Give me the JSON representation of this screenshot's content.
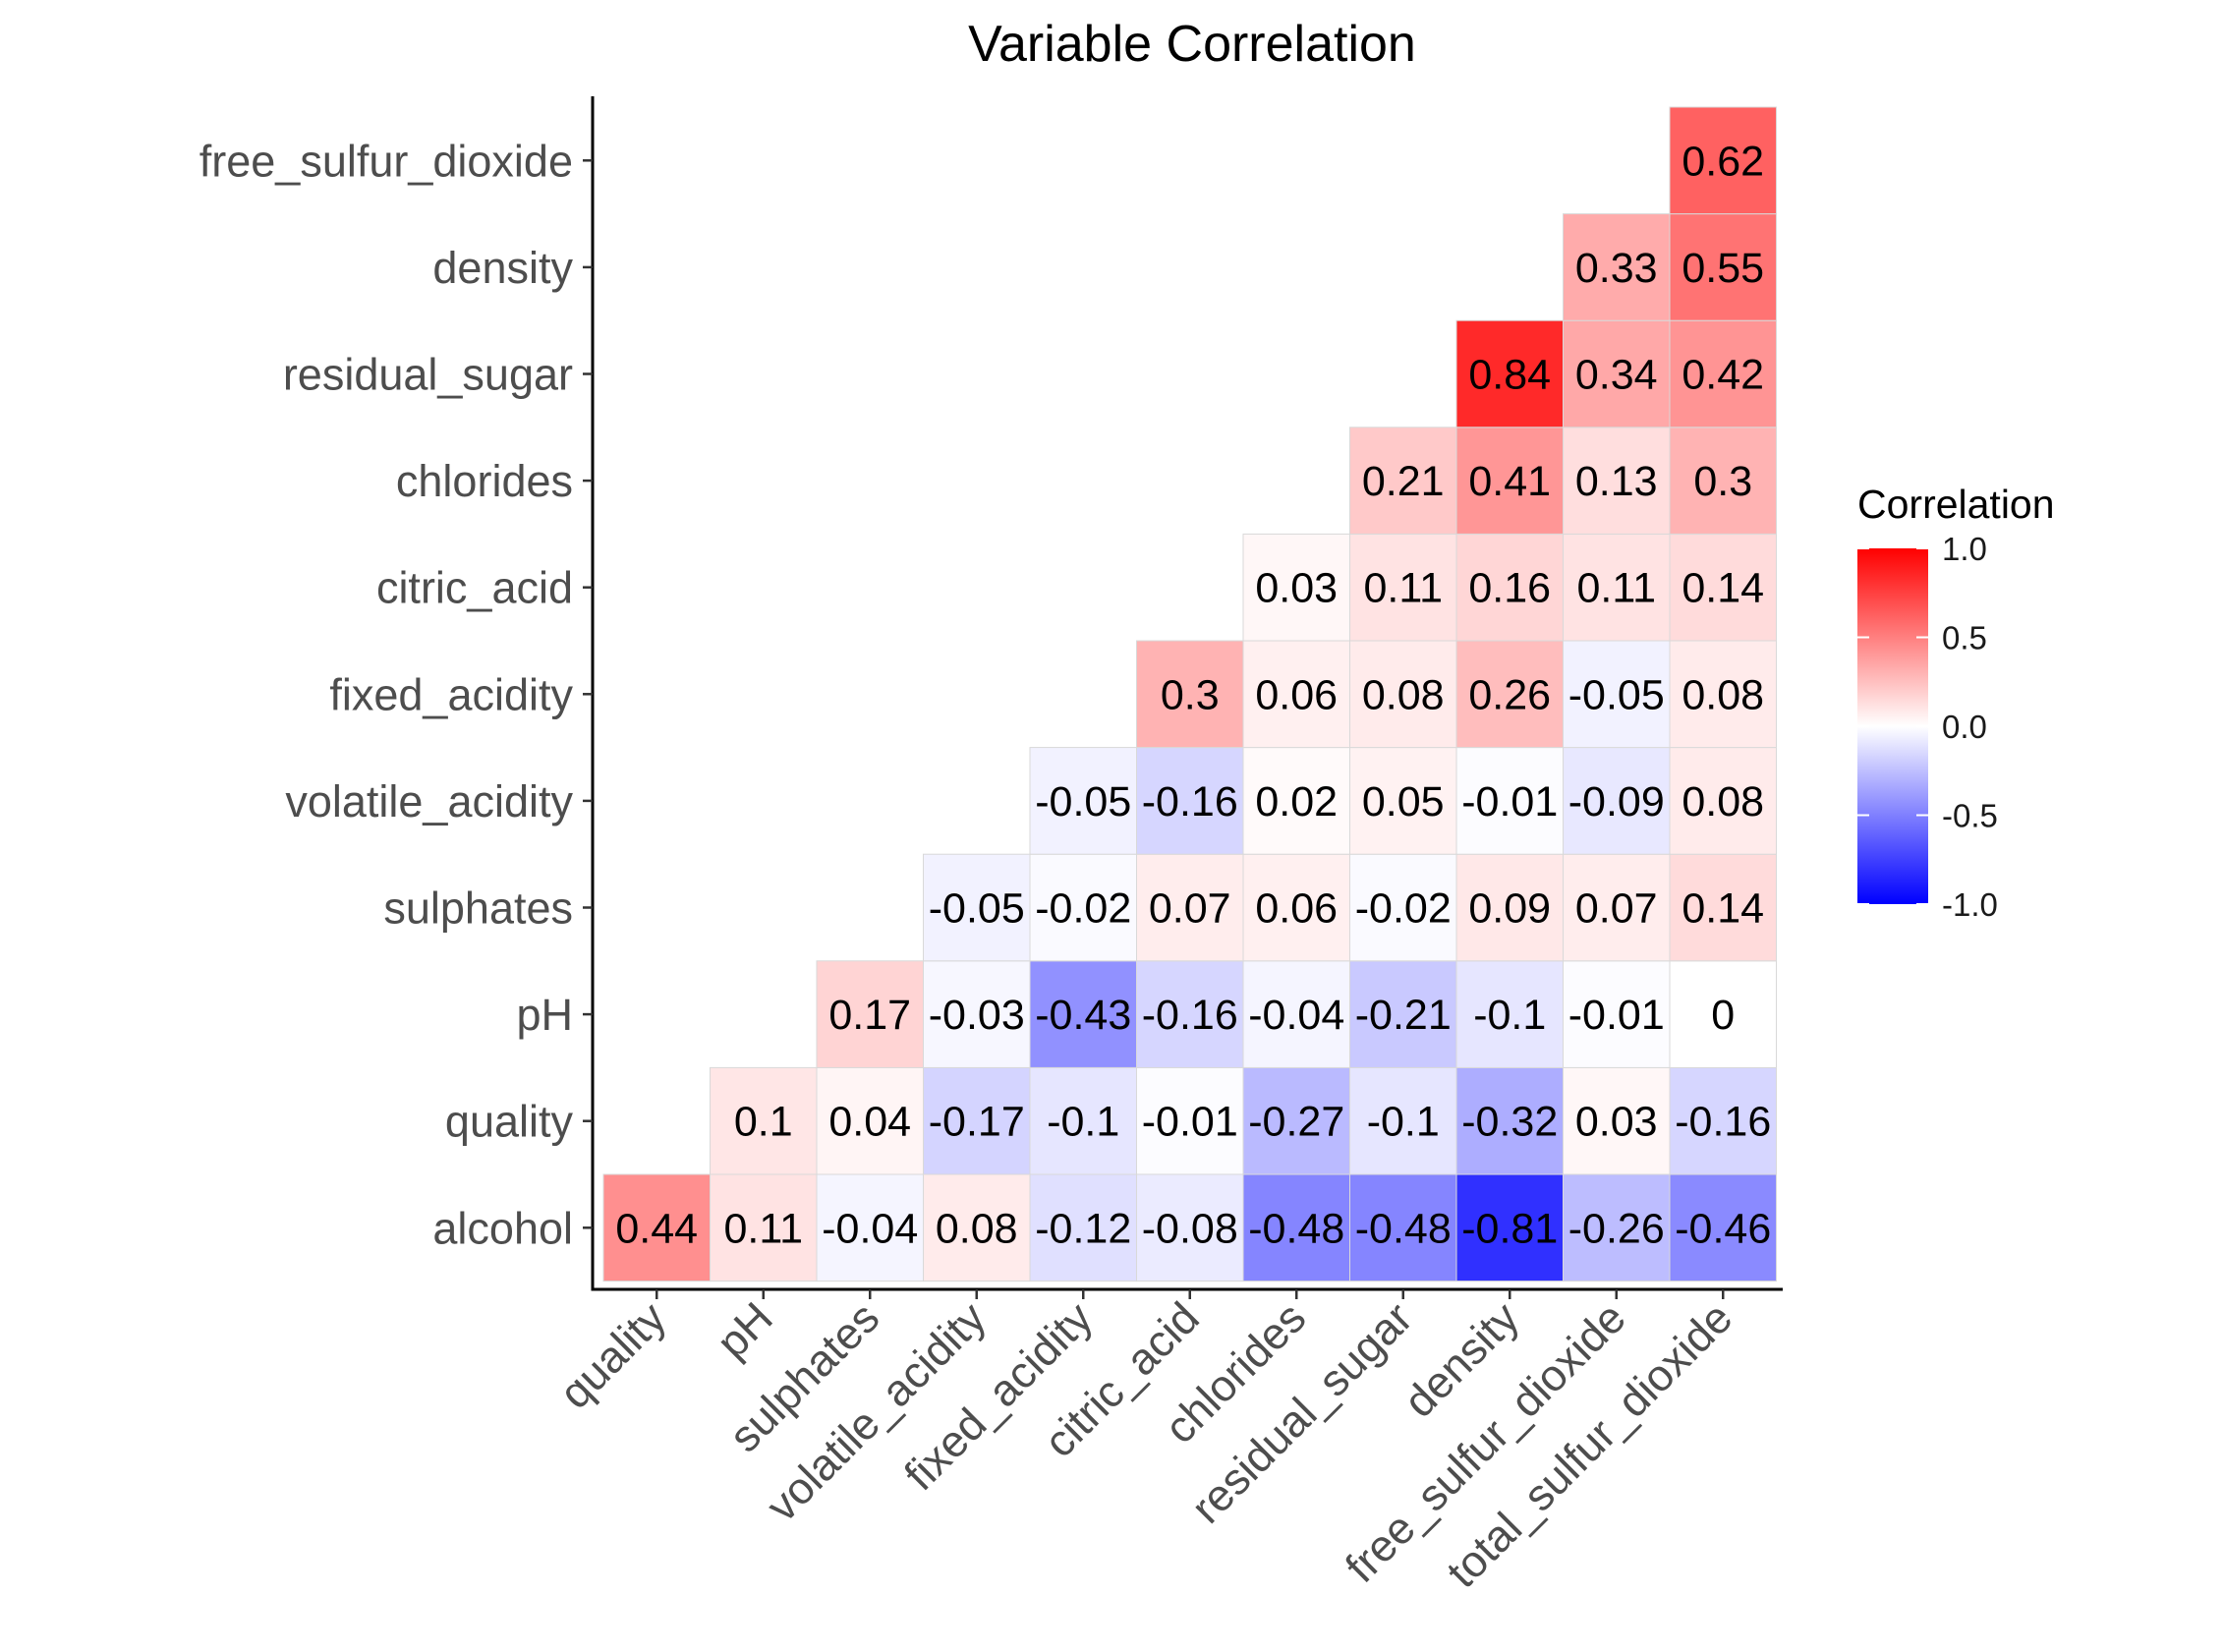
{
  "chart_data": {
    "type": "heatmap",
    "title": "Variable Correlation",
    "xlabel": "",
    "ylabel": "",
    "x_categories": [
      "quality",
      "pH",
      "sulphates",
      "volatile_acidity",
      "fixed_acidity",
      "citric_acid",
      "chlorides",
      "residual_sugar",
      "density",
      "free_sulfur_dioxide",
      "total_sulfur_dioxide"
    ],
    "y_categories": [
      "alcohol",
      "quality",
      "pH",
      "sulphates",
      "volatile_acidity",
      "fixed_acidity",
      "citric_acid",
      "chlorides",
      "residual_sugar",
      "density",
      "free_sulfur_dioxide"
    ],
    "values": [
      [
        0.44,
        0.11,
        -0.04,
        0.08,
        -0.12,
        -0.08,
        -0.48,
        -0.48,
        -0.81,
        -0.26,
        -0.46
      ],
      [
        null,
        0.1,
        0.04,
        -0.17,
        -0.1,
        -0.01,
        -0.27,
        -0.1,
        -0.32,
        0.03,
        -0.16
      ],
      [
        null,
        null,
        0.17,
        -0.03,
        -0.43,
        -0.16,
        -0.04,
        -0.21,
        -0.1,
        -0.01,
        0
      ],
      [
        null,
        null,
        null,
        -0.05,
        -0.02,
        0.07,
        0.06,
        -0.02,
        0.09,
        0.07,
        0.14
      ],
      [
        null,
        null,
        null,
        null,
        -0.05,
        -0.16,
        0.02,
        0.05,
        -0.01,
        -0.09,
        0.08
      ],
      [
        null,
        null,
        null,
        null,
        null,
        0.3,
        0.06,
        0.08,
        0.26,
        -0.05,
        0.08
      ],
      [
        null,
        null,
        null,
        null,
        null,
        null,
        0.03,
        0.11,
        0.16,
        0.11,
        0.14
      ],
      [
        null,
        null,
        null,
        null,
        null,
        null,
        null,
        0.21,
        0.41,
        0.13,
        0.3
      ],
      [
        null,
        null,
        null,
        null,
        null,
        null,
        null,
        null,
        0.84,
        0.34,
        0.42
      ],
      [
        null,
        null,
        null,
        null,
        null,
        null,
        null,
        null,
        null,
        0.33,
        0.55
      ],
      [
        null,
        null,
        null,
        null,
        null,
        null,
        null,
        null,
        null,
        null,
        0.62
      ]
    ],
    "value_range": [
      -1,
      1
    ],
    "grid": false,
    "legend": {
      "title": "Correlation",
      "placement": "right",
      "ticks": [
        "1.0",
        "0.5",
        "0.0",
        "-0.5",
        "-1.0"
      ],
      "tick_values": [
        1,
        0.5,
        0,
        -0.5,
        -1
      ]
    },
    "colors": {
      "high": "#ff0000",
      "mid": "#ffffff",
      "low": "#0000ff"
    }
  }
}
